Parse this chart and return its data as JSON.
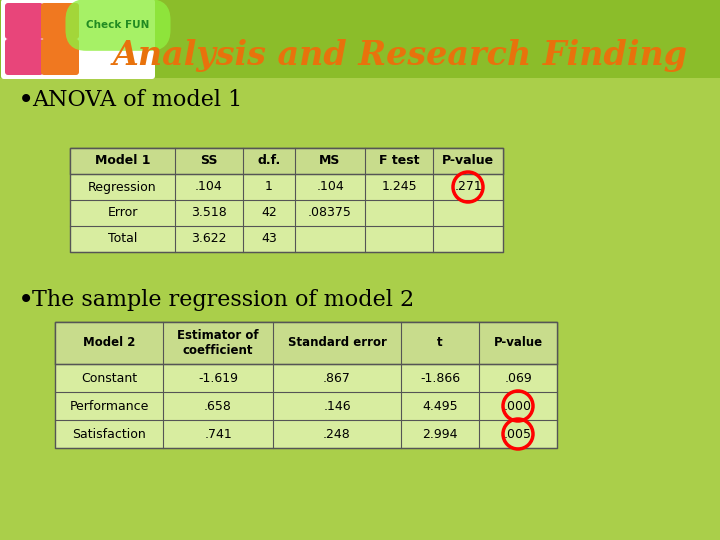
{
  "title": "Analysis and Research Finding",
  "title_color": "#E8720C",
  "slide_bg": "#8BBD2A",
  "content_bg": "#AACF4A",
  "bullet1": "ANOVA of model 1",
  "bullet2": "The sample regression of model 2",
  "table1_headers": [
    "Model 1",
    "SS",
    "d.f.",
    "MS",
    "F test",
    "P-value"
  ],
  "table1_rows": [
    [
      "Regression",
      ".104",
      "1",
      ".104",
      "1.245",
      ".271"
    ],
    [
      "Error",
      "3.518",
      "42",
      ".08375",
      "",
      ""
    ],
    [
      "Total",
      "3.622",
      "43",
      "",
      "",
      ""
    ]
  ],
  "table1_circle_cell": [
    0,
    5
  ],
  "table2_headers": [
    "Model 2",
    "Estimator of\ncoefficient",
    "Standard error",
    "t",
    "P-value"
  ],
  "table2_rows": [
    [
      "Constant",
      "-1.619",
      ".867",
      "-1.866",
      ".069"
    ],
    [
      "Performance",
      ".658",
      ".146",
      "4.495",
      ".000"
    ],
    [
      "Satisfaction",
      ".741",
      ".248",
      "2.994",
      ".005"
    ]
  ],
  "table2_circle_cells": [
    [
      1,
      4
    ],
    [
      2,
      4
    ]
  ],
  "table_bg": "#D8EDA0",
  "header_bg": "#C8DC8C",
  "circle_color": "red",
  "logo_bg": "white",
  "logo_pink": "#E8457A",
  "logo_orange": "#F07820"
}
